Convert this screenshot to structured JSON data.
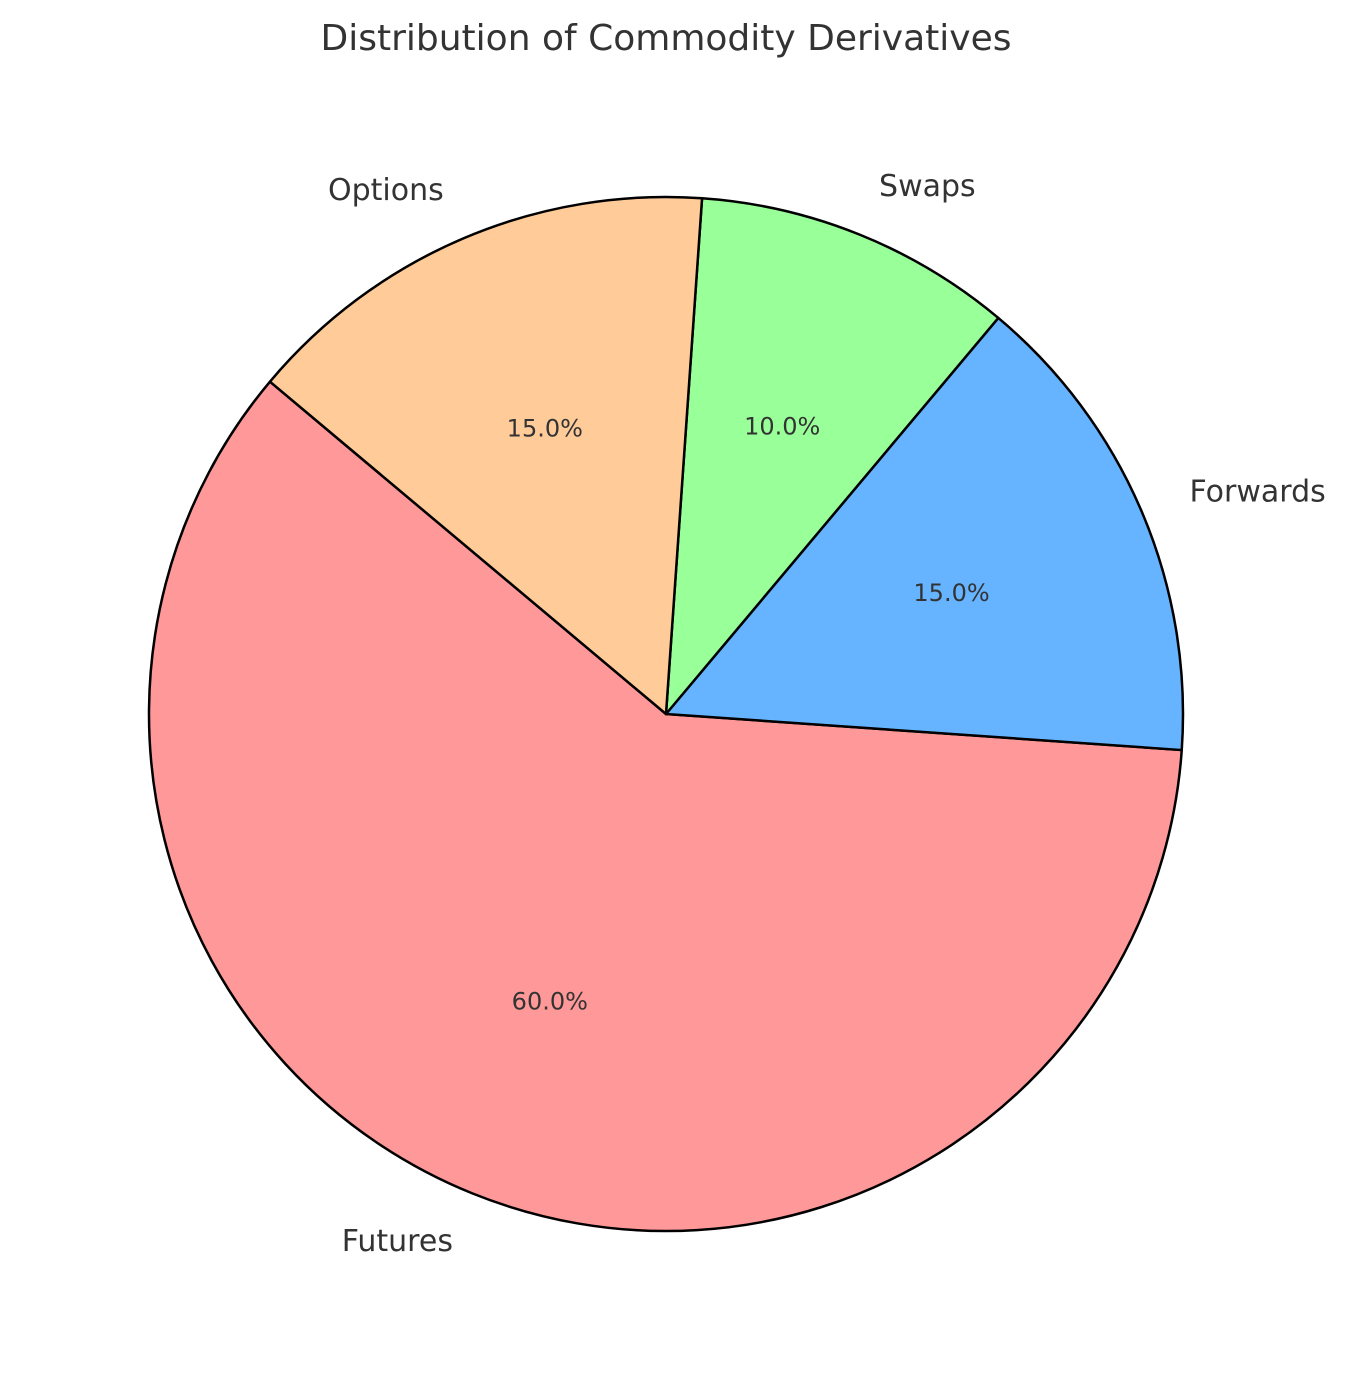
{
  "chart_data": {
    "type": "pie",
    "title": "Distribution of Commodity Derivatives",
    "categories": [
      "Futures",
      "Forwards",
      "Swaps",
      "Options"
    ],
    "values": [
      60,
      15,
      10,
      15
    ],
    "value_labels": [
      "60.0%",
      "15.0%",
      "10.0%",
      "15.0%"
    ],
    "colors": [
      "#ff9999",
      "#66b3ff",
      "#99ff99",
      "#ffcc99"
    ],
    "start_angle_deg": 140,
    "direction": "counterclockwise",
    "legend": "none"
  }
}
